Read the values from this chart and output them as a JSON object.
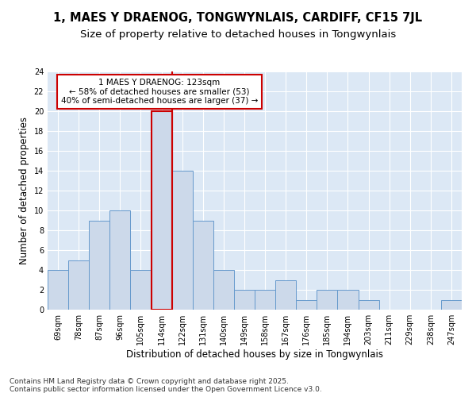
{
  "title": "1, MAES Y DRAENOG, TONGWYNLAIS, CARDIFF, CF15 7JL",
  "subtitle": "Size of property relative to detached houses in Tongwynlais",
  "xlabel": "Distribution of detached houses by size in Tongwynlais",
  "ylabel": "Number of detached properties",
  "categories": [
    "69sqm",
    "78sqm",
    "87sqm",
    "96sqm",
    "105sqm",
    "114sqm",
    "122sqm",
    "131sqm",
    "140sqm",
    "149sqm",
    "158sqm",
    "167sqm",
    "176sqm",
    "185sqm",
    "194sqm",
    "203sqm",
    "211sqm",
    "229sqm",
    "238sqm",
    "247sqm"
  ],
  "values": [
    4,
    5,
    9,
    10,
    4,
    20,
    14,
    9,
    4,
    2,
    2,
    3,
    1,
    2,
    2,
    1,
    0,
    0,
    0,
    1
  ],
  "bar_color": "#ccd9ea",
  "bar_edge_color": "#6699cc",
  "highlight_bar_index": 5,
  "vline_color": "#cc0000",
  "annotation_text": "1 MAES Y DRAENOG: 123sqm\n← 58% of detached houses are smaller (53)\n40% of semi-detached houses are larger (37) →",
  "annotation_box_color": "#ffffff",
  "annotation_box_edge": "#cc0000",
  "ylim": [
    0,
    24
  ],
  "yticks": [
    0,
    2,
    4,
    6,
    8,
    10,
    12,
    14,
    16,
    18,
    20,
    22,
    24
  ],
  "plot_bg": "#dce8f5",
  "footer": "Contains HM Land Registry data © Crown copyright and database right 2025.\nContains public sector information licensed under the Open Government Licence v3.0.",
  "title_fontsize": 10.5,
  "subtitle_fontsize": 9.5,
  "xlabel_fontsize": 8.5,
  "ylabel_fontsize": 8.5,
  "tick_fontsize": 7,
  "annotation_fontsize": 7.5,
  "footer_fontsize": 6.5
}
